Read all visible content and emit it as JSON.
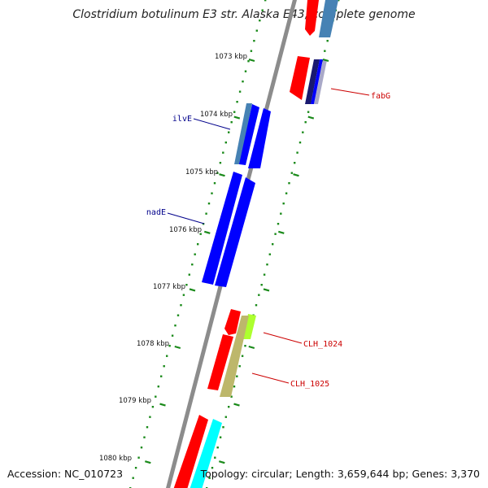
{
  "title": "Clostridium botulinum E3 str. Alaska E43, complete genome",
  "footer": {
    "accession": "Accession: NC_010723",
    "topology": "Topology: circular; Length: 3,659,644 bp; Genes: 3,370"
  },
  "ticks": [
    {
      "label": "1073 kbp",
      "kbp": 1073
    },
    {
      "label": "1074 kbp",
      "kbp": 1074
    },
    {
      "label": "1075 kbp",
      "kbp": 1075
    },
    {
      "label": "1076 kbp",
      "kbp": 1076
    },
    {
      "label": "1077 kbp",
      "kbp": 1077
    },
    {
      "label": "1078 kbp",
      "kbp": 1078
    },
    {
      "label": "1079 kbp",
      "kbp": 1079
    },
    {
      "label": "1080 kbp",
      "kbp": 1080
    }
  ],
  "gene_labels": [
    {
      "label": "ilvE",
      "color": "#00008b"
    },
    {
      "label": "nadE",
      "color": "#00008b"
    },
    {
      "label": "fabG",
      "color": "#cc0000"
    },
    {
      "label": "CLH_1024",
      "color": "#cc0000"
    },
    {
      "label": "CLH_1025",
      "color": "#cc0000"
    }
  ],
  "colors": {
    "backbone": "#8c8c8c",
    "tick": "#1a8a1a",
    "red": "#ff0000",
    "blue": "#0000ff",
    "steelblue": "#4682b4",
    "navy": "#191970",
    "cyan": "#00ffff",
    "tan": "#bdb76b",
    "lime": "#adff2f"
  }
}
